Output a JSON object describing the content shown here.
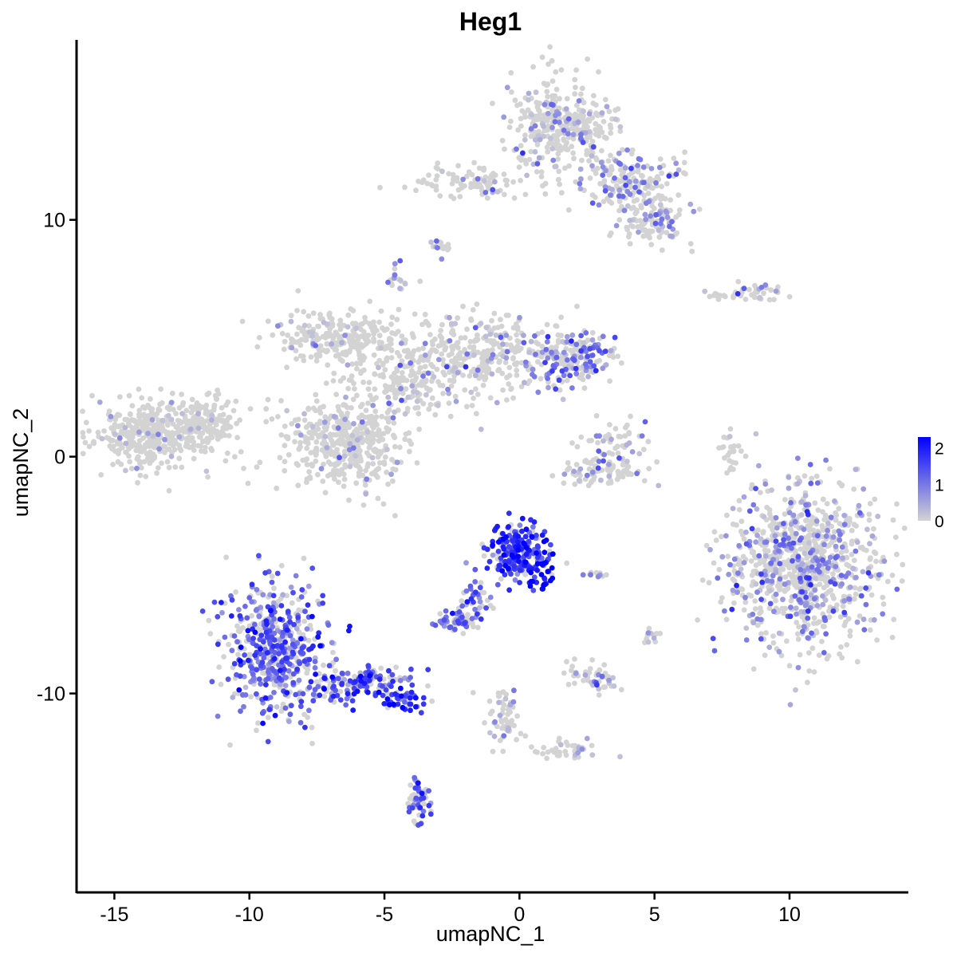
{
  "chart_data": {
    "type": "scatter",
    "title": "Heg1",
    "xlabel": "umapNC_1",
    "ylabel": "umapNC_2",
    "xlim": [
      -16.4,
      14.4
    ],
    "ylim": [
      -18.4,
      17.6
    ],
    "xticks": [
      -15,
      -10,
      -5,
      0,
      5,
      10
    ],
    "yticks": [
      -10,
      0,
      10
    ],
    "grid": false,
    "color_scale": {
      "low": "#d3d3d3",
      "high": "#0000ff",
      "min": 0,
      "max": 2.3,
      "legend_ticks": [
        0,
        1,
        2
      ],
      "legend_position": "right"
    },
    "clusters": [
      {
        "cx": -13.5,
        "cy": 1.0,
        "sx": 1.1,
        "sy": 0.7,
        "n": 420,
        "expr": 0.02
      },
      {
        "cx": -11.5,
        "cy": 1.4,
        "sx": 0.6,
        "sy": 0.6,
        "n": 90,
        "expr": 0.02
      },
      {
        "cx": -6.5,
        "cy": 0.5,
        "sx": 1.1,
        "sy": 0.9,
        "n": 420,
        "expr": 0.06
      },
      {
        "cx": -6.8,
        "cy": 5.0,
        "sx": 1.1,
        "sy": 0.6,
        "n": 220,
        "expr": 0.05
      },
      {
        "cx": -4.5,
        "cy": 3.5,
        "sx": 1.0,
        "sy": 1.0,
        "n": 240,
        "expr": 0.07
      },
      {
        "cx": -1.5,
        "cy": 4.2,
        "sx": 1.1,
        "sy": 0.9,
        "n": 260,
        "expr": 0.2
      },
      {
        "cx": 1.8,
        "cy": 4.2,
        "sx": 0.9,
        "sy": 0.6,
        "n": 220,
        "expr": 0.6
      },
      {
        "cx": -4.5,
        "cy": 7.5,
        "sx": 0.2,
        "sy": 0.3,
        "n": 18,
        "expr": 0.4
      },
      {
        "cx": 1.5,
        "cy": 14.0,
        "sx": 0.9,
        "sy": 1.0,
        "n": 360,
        "expr": 0.25
      },
      {
        "cx": 4.0,
        "cy": 11.6,
        "sx": 0.9,
        "sy": 0.6,
        "n": 180,
        "expr": 0.45
      },
      {
        "cx": 5.0,
        "cy": 9.8,
        "sx": 0.6,
        "sy": 0.5,
        "n": 110,
        "expr": 0.35
      },
      {
        "cx": -1.8,
        "cy": 11.5,
        "sx": 1.2,
        "sy": 0.35,
        "n": 90,
        "expr": 0.12
      },
      {
        "cx": -2.9,
        "cy": 8.8,
        "sx": 0.2,
        "sy": 0.2,
        "n": 14,
        "expr": 0.45
      },
      {
        "cx": 8.5,
        "cy": 6.9,
        "sx": 0.8,
        "sy": 0.2,
        "n": 45,
        "expr": 0.4
      },
      {
        "cx": 10.5,
        "cy": -4.5,
        "sx": 1.4,
        "sy": 1.8,
        "n": 900,
        "expr": 0.42
      },
      {
        "cx": 3.5,
        "cy": 0.5,
        "sx": 0.6,
        "sy": 0.7,
        "n": 60,
        "expr": 0.3
      },
      {
        "cx": 3.0,
        "cy": -0.6,
        "sx": 0.9,
        "sy": 0.3,
        "n": 80,
        "expr": 0.12
      },
      {
        "cx": 7.8,
        "cy": 0.2,
        "sx": 0.2,
        "sy": 0.6,
        "n": 25,
        "expr": 0.05
      },
      {
        "cx": -9.0,
        "cy": -8.2,
        "sx": 0.9,
        "sy": 1.4,
        "n": 520,
        "expr": 0.95
      },
      {
        "cx": -6.0,
        "cy": -9.6,
        "sx": 1.0,
        "sy": 0.4,
        "n": 150,
        "expr": 1.1
      },
      {
        "cx": -4.3,
        "cy": -10.3,
        "sx": 0.4,
        "sy": 0.2,
        "n": 40,
        "expr": 1.5
      },
      {
        "cx": 0.0,
        "cy": -4.0,
        "sx": 0.6,
        "sy": 0.6,
        "n": 220,
        "expr": 1.35
      },
      {
        "cx": 0.9,
        "cy": -5.0,
        "sx": 0.3,
        "sy": 0.35,
        "n": 30,
        "expr": 2.0
      },
      {
        "cx": -1.6,
        "cy": -6.0,
        "sx": 0.3,
        "sy": 0.5,
        "n": 40,
        "expr": 0.9
      },
      {
        "cx": -2.4,
        "cy": -7.0,
        "sx": 0.4,
        "sy": 0.2,
        "n": 55,
        "expr": 0.9
      },
      {
        "cx": -3.7,
        "cy": -14.5,
        "sx": 0.2,
        "sy": 0.5,
        "n": 55,
        "expr": 1.1
      },
      {
        "cx": -0.5,
        "cy": -11.0,
        "sx": 0.3,
        "sy": 0.6,
        "n": 60,
        "expr": 0.2
      },
      {
        "cx": 1.8,
        "cy": -12.4,
        "sx": 0.7,
        "sy": 0.2,
        "n": 40,
        "expr": 0.15
      },
      {
        "cx": 2.8,
        "cy": -9.3,
        "sx": 0.5,
        "sy": 0.3,
        "n": 50,
        "expr": 0.3
      },
      {
        "cx": 2.9,
        "cy": -5.0,
        "sx": 0.3,
        "sy": 0.1,
        "n": 10,
        "expr": 0.5
      },
      {
        "cx": 4.9,
        "cy": -7.5,
        "sx": 0.2,
        "sy": 0.2,
        "n": 12,
        "expr": 0.2
      }
    ]
  }
}
